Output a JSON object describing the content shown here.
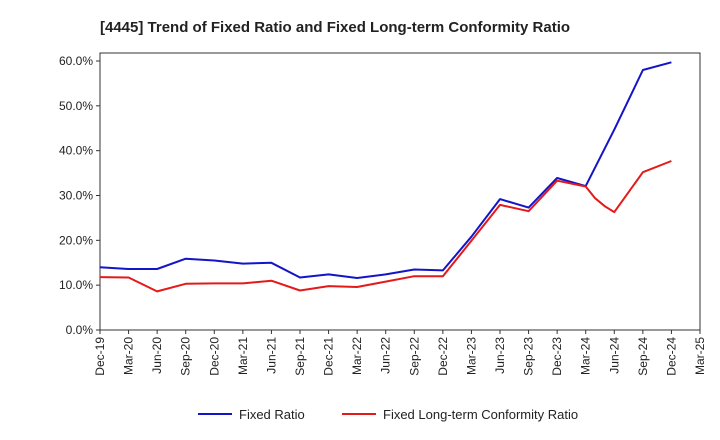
{
  "chart_data": {
    "type": "line",
    "title": "[4445]  Trend of Fixed Ratio and Fixed Long-term Conformity Ratio",
    "xlabel": "",
    "ylabel": "",
    "x_ticks": [
      "Dec-19",
      "Mar-20",
      "Jun-20",
      "Sep-20",
      "Dec-20",
      "Mar-21",
      "Jun-21",
      "Sep-21",
      "Dec-21",
      "Mar-22",
      "Jun-22",
      "Sep-22",
      "Dec-22",
      "Mar-23",
      "Jun-23",
      "Sep-23",
      "Dec-23",
      "Mar-24",
      "Jun-24",
      "Sep-24",
      "Dec-24",
      "Mar-25"
    ],
    "y_ticks": [
      "0.0%",
      "10.0%",
      "20.0%",
      "30.0%",
      "40.0%",
      "50.0%",
      "60.0%"
    ],
    "ylim": [
      0,
      60
    ],
    "grid": true,
    "legend_position": "bottom-center",
    "series": [
      {
        "name": "Fixed Ratio",
        "color": "#1414c8",
        "points": [
          [
            0,
            14.0
          ],
          [
            1,
            13.6
          ],
          [
            2,
            13.6
          ],
          [
            3,
            15.9
          ],
          [
            4,
            15.5
          ],
          [
            5,
            14.8
          ],
          [
            6,
            15.0
          ],
          [
            7,
            11.7
          ],
          [
            8,
            12.4
          ],
          [
            9,
            11.6
          ],
          [
            10,
            12.4
          ],
          [
            11,
            13.5
          ],
          [
            12,
            13.3
          ],
          [
            13,
            20.8
          ],
          [
            14,
            29.2
          ],
          [
            15,
            27.3
          ],
          [
            16,
            33.9
          ],
          [
            17,
            32.1
          ],
          [
            18,
            44.7
          ],
          [
            19,
            58.0
          ],
          [
            20,
            59.7
          ]
        ]
      },
      {
        "name": "Fixed Long-term Conformity Ratio",
        "color": "#e41a1a",
        "points": [
          [
            0,
            11.8
          ],
          [
            1,
            11.7
          ],
          [
            2,
            8.6
          ],
          [
            3,
            10.3
          ],
          [
            4,
            10.4
          ],
          [
            5,
            10.4
          ],
          [
            6,
            11.0
          ],
          [
            7,
            8.8
          ],
          [
            8,
            9.8
          ],
          [
            9,
            9.6
          ],
          [
            10,
            10.8
          ],
          [
            11,
            12.0
          ],
          [
            12,
            12.0
          ],
          [
            13,
            19.9
          ],
          [
            14,
            27.9
          ],
          [
            15,
            26.5
          ],
          [
            16,
            33.3
          ],
          [
            17,
            32.0
          ],
          [
            17.33,
            29.4
          ],
          [
            17.67,
            27.6
          ],
          [
            18,
            26.3
          ],
          [
            19,
            35.2
          ],
          [
            20,
            37.7
          ]
        ]
      }
    ]
  }
}
